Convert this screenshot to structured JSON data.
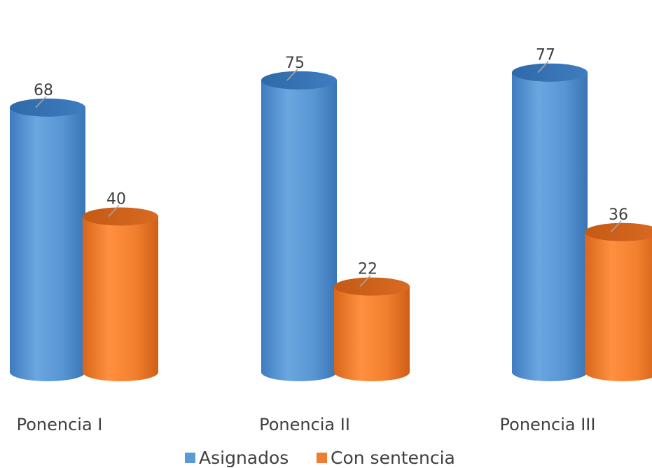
{
  "chart_data": {
    "type": "bar",
    "style": "3d-cylinder",
    "categories": [
      "Ponencia I",
      "Ponencia II",
      "Ponencia III"
    ],
    "series": [
      {
        "name": "Asignados",
        "values": [
          68,
          75,
          77
        ],
        "color": "#5B9BD5"
      },
      {
        "name": "Con sentencia",
        "values": [
          40,
          22,
          36
        ],
        "color": "#ED7D31"
      }
    ],
    "ylim": [
      0,
      80
    ],
    "grid": false,
    "legend": "bottom",
    "data_labels": true
  }
}
